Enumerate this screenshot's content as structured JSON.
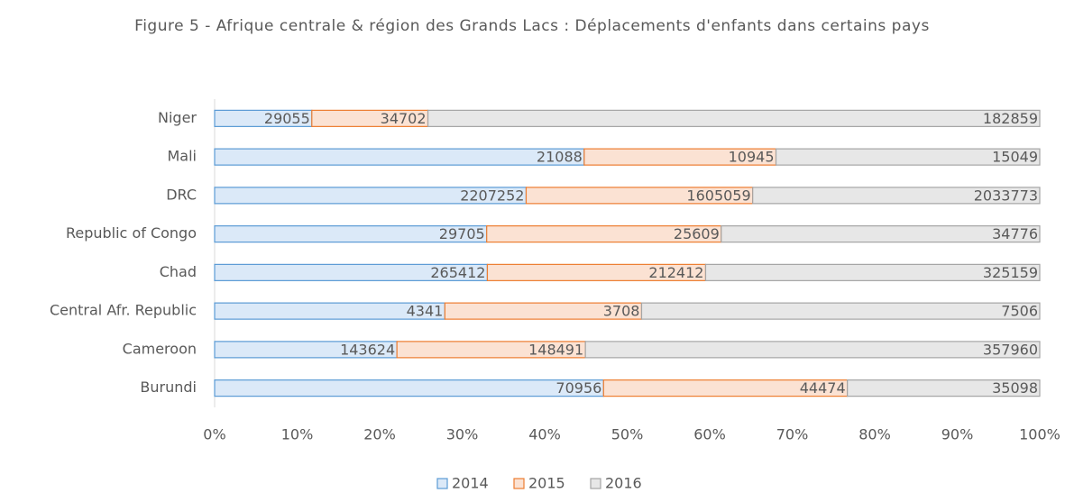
{
  "chart_data": {
    "type": "bar",
    "orientation": "horizontal",
    "stacked": "percent",
    "title": "Figure 5 - Afrique centrale & région des Grands Lacs : Déplacements  d'enfants dans certains pays",
    "categories": [
      "Niger",
      "Mali",
      "DRC",
      "Republic of Congo",
      "Chad",
      "Central Afr. Republic",
      "Cameroon",
      "Burundi"
    ],
    "series": [
      {
        "name": "2014",
        "color": "#dbe9f8",
        "edge": "#5b9bd5",
        "values": [
          29055,
          21088,
          2207252,
          29705,
          265412,
          4341,
          143624,
          70956
        ]
      },
      {
        "name": "2015",
        "color": "#fbe2d3",
        "edge": "#ed7d31",
        "values": [
          34702,
          10945,
          1605059,
          25609,
          212412,
          3708,
          148491,
          44474
        ]
      },
      {
        "name": "2016",
        "color": "#e7e7e7",
        "edge": "#a5a5a5",
        "values": [
          182859,
          15049,
          2033773,
          34776,
          325159,
          7506,
          357960,
          35098
        ]
      }
    ],
    "xlim": [
      0,
      100
    ],
    "xticks": [
      {
        "value": 0,
        "label": "0%"
      },
      {
        "value": 10,
        "label": "10%"
      },
      {
        "value": 20,
        "label": "20%"
      },
      {
        "value": 30,
        "label": "30%"
      },
      {
        "value": 40,
        "label": "40%"
      },
      {
        "value": 50,
        "label": "50%"
      },
      {
        "value": 60,
        "label": "60%"
      },
      {
        "value": 70,
        "label": "70%"
      },
      {
        "value": 80,
        "label": "80%"
      },
      {
        "value": 90,
        "label": "90%"
      },
      {
        "value": 100,
        "label": "100%"
      }
    ],
    "grid": false,
    "legend": "bottom",
    "data_labels": true
  }
}
